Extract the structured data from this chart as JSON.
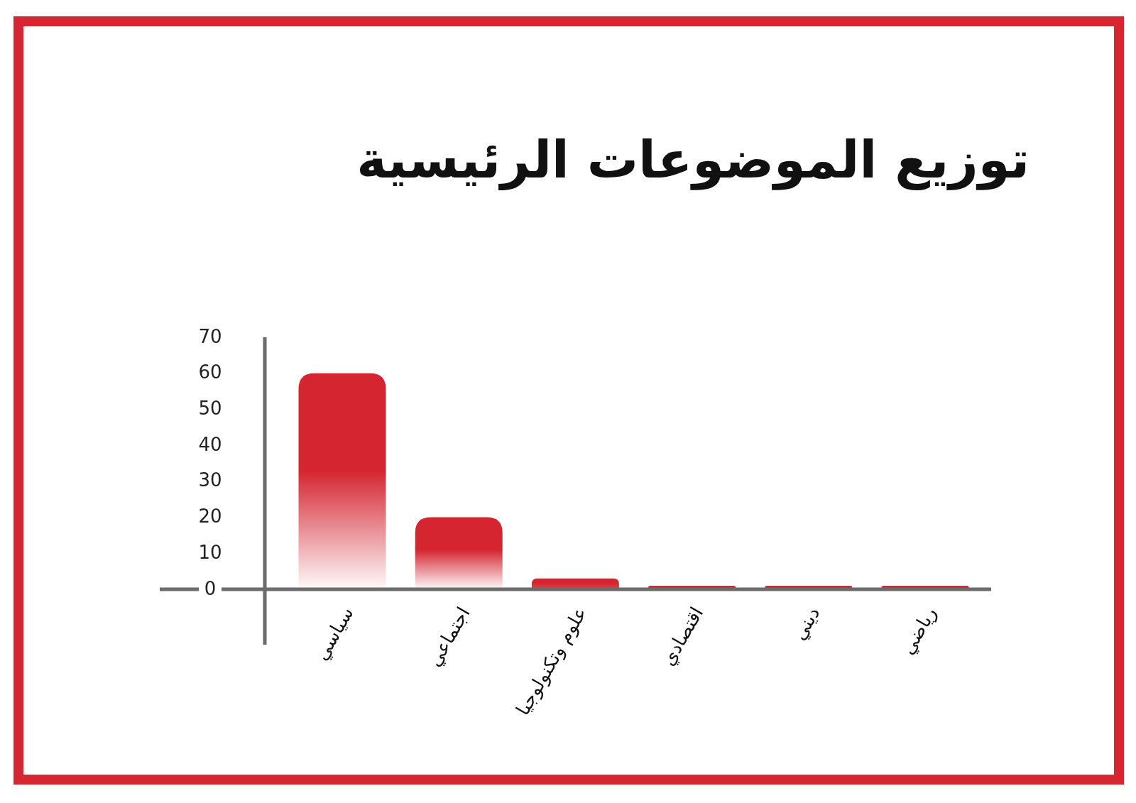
{
  "chart_data": {
    "type": "bar",
    "title": "توزيع الموضوعات الرئيسية",
    "categories": [
      "سياسي",
      "اجتماعي",
      "علوم وتكنولوجيا",
      "اقتصادي",
      "ديني",
      "رياضي"
    ],
    "values": [
      60,
      20,
      3,
      1,
      1,
      1
    ],
    "color": "#d42530",
    "ylim": [
      0,
      70
    ],
    "yticks": [
      0,
      10,
      20,
      30,
      40,
      50,
      60,
      70
    ]
  }
}
